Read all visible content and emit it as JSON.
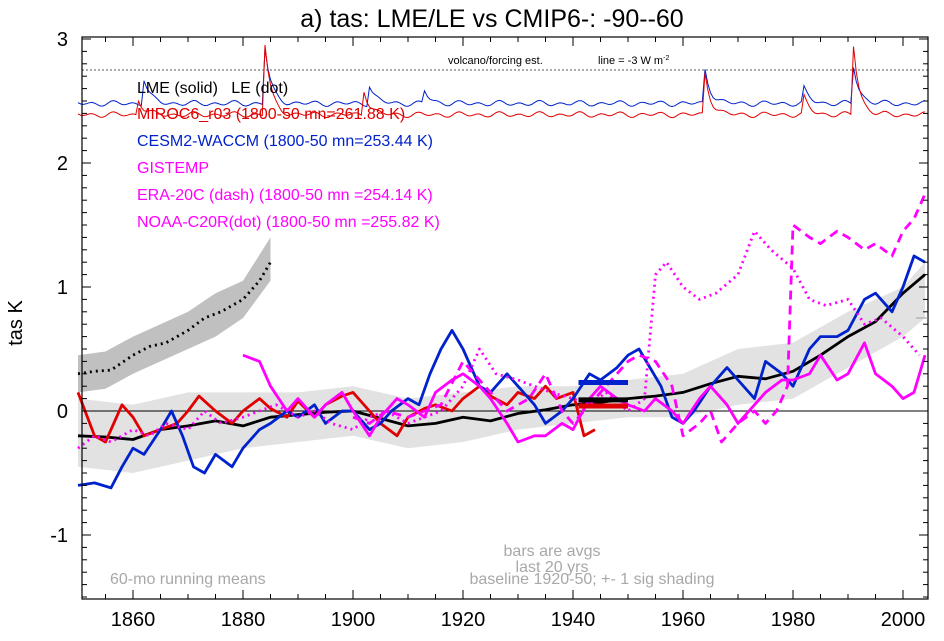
{
  "chart_data": {
    "type": "line",
    "title": "a) tas: LME/LE vs CMIP6-: -90--60",
    "ylabel": "tas K",
    "xlabel": "",
    "xlim": [
      1850,
      2005
    ],
    "ylim": [
      -1.5,
      3.0
    ],
    "x_ticks": [
      "1860",
      "1880",
      "1900",
      "1920",
      "1940",
      "1960",
      "1980",
      "2000"
    ],
    "y_ticks": [
      "-1",
      "0",
      "1",
      "2",
      "3"
    ],
    "legend": [
      {
        "label": "LME (solid)   LE (dot)",
        "color": "#000000"
      },
      {
        "label": "MIROC6_r03 (1800-50 mn=261.88 K)",
        "color": "#e00000"
      },
      {
        "label": "CESM2-WACCM (1800-50 mn=253.44 K)",
        "color": "#0022cc"
      },
      {
        "label": "GISTEMP",
        "color": "#ff00ff"
      },
      {
        "label": "ERA-20C (dash) (1800-50 mn =254.14 K)",
        "color": "#ff00ff"
      },
      {
        "label": "NOAA-C20R(dot) (1800-50 mn =255.82 K)",
        "color": "#ff00ff"
      }
    ],
    "annotations": {
      "volcano": "volcano/forcing est.",
      "forcing_line": "line = -3 W m",
      "forcing_sup": "-2",
      "running": "60-mo running means",
      "bars_line1": "bars are avgs",
      "bars_line2": "last 20 yrs",
      "baseline": "baseline 1920-50; +- 1 sig shading"
    },
    "series": [
      {
        "name": "LME",
        "color": "#000000",
        "style": "solid",
        "x": [
          1850,
          1855,
          1860,
          1865,
          1870,
          1875,
          1880,
          1885,
          1890,
          1895,
          1900,
          1905,
          1910,
          1915,
          1920,
          1925,
          1930,
          1935,
          1940,
          1945,
          1950,
          1955,
          1960,
          1965,
          1970,
          1975,
          1980,
          1985,
          1990,
          1995,
          2000,
          2004
        ],
        "y": [
          -0.2,
          -0.21,
          -0.23,
          -0.15,
          -0.12,
          -0.08,
          -0.12,
          -0.05,
          -0.03,
          -0.01,
          0.0,
          -0.06,
          -0.12,
          -0.1,
          -0.05,
          -0.08,
          -0.02,
          0.01,
          0.05,
          0.07,
          0.1,
          0.12,
          0.15,
          0.22,
          0.28,
          0.26,
          0.32,
          0.45,
          0.6,
          0.72,
          0.95,
          1.1
        ]
      },
      {
        "name": "LE",
        "color": "#000000",
        "style": "dot",
        "x": [
          1850,
          1853,
          1856,
          1860,
          1863,
          1866,
          1870,
          1873,
          1876,
          1880,
          1883,
          1885
        ],
        "y": [
          0.3,
          0.32,
          0.33,
          0.45,
          0.52,
          0.55,
          0.65,
          0.75,
          0.8,
          0.9,
          1.05,
          1.2
        ]
      },
      {
        "name": "MIROC6_r03",
        "color": "#e00000",
        "style": "solid",
        "x": [
          1850,
          1853,
          1855,
          1858,
          1860,
          1862,
          1865,
          1868,
          1870,
          1872,
          1875,
          1878,
          1880,
          1883,
          1885,
          1888,
          1890,
          1893,
          1895,
          1898,
          1900,
          1903,
          1905,
          1908,
          1910,
          1913,
          1915,
          1918,
          1920,
          1923,
          1925,
          1928,
          1930,
          1933,
          1935,
          1937,
          1940,
          1942,
          1944
        ],
        "y": [
          0.15,
          -0.2,
          -0.25,
          0.05,
          -0.05,
          -0.2,
          -0.15,
          -0.1,
          0.0,
          0.12,
          0.0,
          -0.1,
          0.0,
          0.1,
          0.02,
          -0.05,
          0.08,
          -0.05,
          0.05,
          0.12,
          0.15,
          0.0,
          -0.1,
          -0.2,
          -0.05,
          0.02,
          0.05,
          0.0,
          0.1,
          0.2,
          0.12,
          0.05,
          0.15,
          0.1,
          0.2,
          0.1,
          0.15,
          -0.2,
          -0.15
        ]
      },
      {
        "name": "CESM2-WACCM",
        "color": "#0022cc",
        "style": "solid",
        "x": [
          1850,
          1853,
          1856,
          1858,
          1860,
          1862,
          1865,
          1867,
          1869,
          1871,
          1873,
          1875,
          1878,
          1880,
          1883,
          1885,
          1888,
          1890,
          1893,
          1895,
          1898,
          1900,
          1903,
          1905,
          1907,
          1910,
          1912,
          1914,
          1916,
          1918,
          1920,
          1923,
          1925,
          1928,
          1930,
          1933,
          1935,
          1938,
          1940,
          1943,
          1945,
          1948,
          1950,
          1952,
          1954,
          1956,
          1958,
          1960,
          1962,
          1965,
          1968,
          1970,
          1973,
          1975,
          1978,
          1980,
          1983,
          1985,
          1988,
          1990,
          1993,
          1995,
          1998,
          2000,
          2002,
          2004
        ],
        "y": [
          -0.6,
          -0.58,
          -0.62,
          -0.45,
          -0.3,
          -0.35,
          -0.15,
          0.0,
          -0.2,
          -0.45,
          -0.5,
          -0.35,
          -0.45,
          -0.3,
          -0.15,
          -0.1,
          0.0,
          -0.05,
          0.05,
          -0.1,
          0.0,
          0.0,
          -0.15,
          -0.1,
          0.0,
          0.1,
          0.05,
          0.3,
          0.5,
          0.65,
          0.5,
          0.2,
          0.15,
          0.3,
          0.2,
          0.05,
          -0.1,
          0.0,
          0.1,
          0.3,
          0.25,
          0.35,
          0.45,
          0.5,
          0.35,
          0.2,
          -0.05,
          -0.1,
          0.0,
          0.2,
          0.35,
          0.25,
          0.1,
          0.4,
          0.3,
          0.2,
          0.5,
          0.6,
          0.6,
          0.65,
          0.9,
          0.95,
          0.8,
          1.0,
          1.25,
          1.2
        ]
      },
      {
        "name": "GISTEMP",
        "color": "#ff00ff",
        "style": "solid",
        "x": [
          1880,
          1883,
          1885,
          1888,
          1890,
          1893,
          1895,
          1898,
          1900,
          1903,
          1905,
          1908,
          1910,
          1913,
          1915,
          1918,
          1920,
          1923,
          1925,
          1928,
          1930,
          1933,
          1935,
          1938,
          1940,
          1943,
          1945,
          1948,
          1950,
          1953,
          1955,
          1958,
          1960,
          1963,
          1965,
          1968,
          1970,
          1973,
          1975,
          1978,
          1980,
          1983,
          1985,
          1988,
          1990,
          1993,
          1995,
          1998,
          2000,
          2002,
          2004
        ],
        "y": [
          0.45,
          0.4,
          0.2,
          0.0,
          0.1,
          -0.05,
          0.05,
          0.15,
          0.0,
          -0.2,
          -0.05,
          0.1,
          0.05,
          -0.05,
          0.15,
          0.25,
          0.3,
          0.2,
          0.1,
          -0.1,
          -0.25,
          -0.2,
          -0.2,
          -0.1,
          -0.15,
          0.1,
          0.2,
          0.1,
          0.05,
          0.0,
          0.1,
          0.0,
          -0.1,
          0.1,
          0.2,
          0.05,
          -0.1,
          0.05,
          0.15,
          0.25,
          0.25,
          0.3,
          0.45,
          0.25,
          0.3,
          0.55,
          0.3,
          0.2,
          0.1,
          0.15,
          0.45
        ]
      },
      {
        "name": "ERA-20C",
        "color": "#ff00ff",
        "style": "dash",
        "x": [
          1900,
          1903,
          1906,
          1910,
          1913,
          1916,
          1920,
          1924,
          1928,
          1932,
          1935,
          1938,
          1940,
          1943,
          1946,
          1948,
          1950,
          1952,
          1955,
          1958,
          1960,
          1963,
          1965,
          1967,
          1970,
          1973,
          1975,
          1977,
          1979,
          1980,
          1983,
          1985,
          1988,
          1990,
          1993,
          1995,
          1998,
          2000,
          2002,
          2004
        ],
        "y": [
          -0.05,
          -0.1,
          0.0,
          -0.05,
          0.0,
          0.05,
          0.4,
          0.2,
          0.0,
          0.1,
          0.3,
          0.0,
          -0.1,
          0.05,
          0.2,
          0.3,
          0.4,
          0.45,
          0.4,
          0.2,
          -0.2,
          -0.1,
          0.0,
          -0.25,
          -0.1,
          0.0,
          -0.1,
          0.0,
          0.2,
          1.5,
          1.4,
          1.35,
          1.45,
          1.4,
          1.3,
          1.35,
          1.25,
          1.45,
          1.55,
          1.75
        ]
      },
      {
        "name": "NOAA-C20R",
        "color": "#ff00ff",
        "style": "dot",
        "x": [
          1850,
          1853,
          1856,
          1860,
          1863,
          1866,
          1870,
          1873,
          1876,
          1880,
          1883,
          1886,
          1890,
          1893,
          1896,
          1900,
          1903,
          1906,
          1910,
          1913,
          1916,
          1920,
          1923,
          1926,
          1930,
          1933,
          1936,
          1940,
          1943,
          1946,
          1950,
          1953,
          1955,
          1957,
          1960,
          1963,
          1966,
          1970,
          1973,
          1976,
          1980,
          1983,
          1986,
          1990,
          1993,
          1996,
          2000,
          2003
        ],
        "y": [
          -0.3,
          -0.2,
          -0.25,
          -0.15,
          -0.2,
          -0.1,
          -0.15,
          0.0,
          -0.1,
          -0.05,
          0.0,
          0.05,
          -0.05,
          0.0,
          -0.1,
          -0.15,
          -0.05,
          0.0,
          -0.1,
          -0.05,
          0.0,
          0.2,
          0.5,
          0.3,
          0.25,
          0.2,
          0.15,
          0.1,
          0.05,
          0.15,
          0.0,
          0.1,
          1.1,
          1.2,
          1.0,
          0.9,
          0.95,
          1.1,
          1.45,
          1.3,
          1.15,
          0.9,
          0.85,
          0.9,
          0.7,
          0.75,
          0.6,
          0.45
        ]
      }
    ],
    "spread_bands": [
      {
        "name": "LE",
        "color": "#c0c0c0",
        "x": [
          1850,
          1855,
          1860,
          1865,
          1870,
          1875,
          1880,
          1885
        ],
        "low": [
          0.15,
          0.18,
          0.3,
          0.4,
          0.5,
          0.6,
          0.75,
          1.05
        ],
        "high": [
          0.45,
          0.48,
          0.6,
          0.7,
          0.8,
          0.95,
          1.05,
          1.4
        ]
      },
      {
        "name": "LME",
        "color": "#e2e2e2",
        "x": [
          1850,
          1860,
          1870,
          1880,
          1890,
          1900,
          1910,
          1920,
          1930,
          1940,
          1950,
          1960,
          1970,
          1980,
          1990,
          2000,
          2004
        ],
        "low": [
          -0.45,
          -0.5,
          -0.4,
          -0.3,
          -0.25,
          -0.2,
          -0.3,
          -0.25,
          -0.15,
          -0.1,
          -0.05,
          -0.05,
          0.05,
          0.1,
          0.35,
          0.6,
          0.75
        ],
        "high": [
          0.1,
          0.05,
          0.15,
          0.15,
          0.15,
          0.2,
          0.1,
          0.15,
          0.2,
          0.2,
          0.25,
          0.3,
          0.5,
          0.55,
          0.8,
          1.0,
          1.2
        ]
      }
    ],
    "last20_bars": [
      {
        "name": "CESM2-WACCM",
        "color": "#0022cc",
        "x": [
          1941,
          1950
        ],
        "y": 0.23
      },
      {
        "name": "LME",
        "color": "#000000",
        "x": [
          1941,
          1950
        ],
        "y": 0.09
      },
      {
        "name": "MIROC6_r03",
        "color": "#e00000",
        "x": [
          1941,
          1950
        ],
        "y": 0.04
      }
    ],
    "forcing": [
      {
        "name": "CESM2-WACCM forcing",
        "color": "#0022cc",
        "base": 2.48,
        "peaks": [
          [
            1862,
            0.2
          ],
          [
            1884,
            0.45
          ],
          [
            1903,
            0.15
          ],
          [
            1913,
            0.1
          ],
          [
            1964,
            0.27
          ],
          [
            1982,
            0.12
          ],
          [
            1991,
            0.3
          ]
        ]
      },
      {
        "name": "MIROC6_r03 forcing",
        "color": "#e00000",
        "base": 2.39,
        "peaks": [
          [
            1861,
            0.12
          ],
          [
            1884,
            0.57
          ],
          [
            1902,
            0.2
          ],
          [
            1964,
            0.33
          ],
          [
            1982,
            0.14
          ],
          [
            1991,
            0.56
          ]
        ]
      }
    ],
    "reference_line_y": 2.75,
    "zero_line": true,
    "grid": false
  }
}
